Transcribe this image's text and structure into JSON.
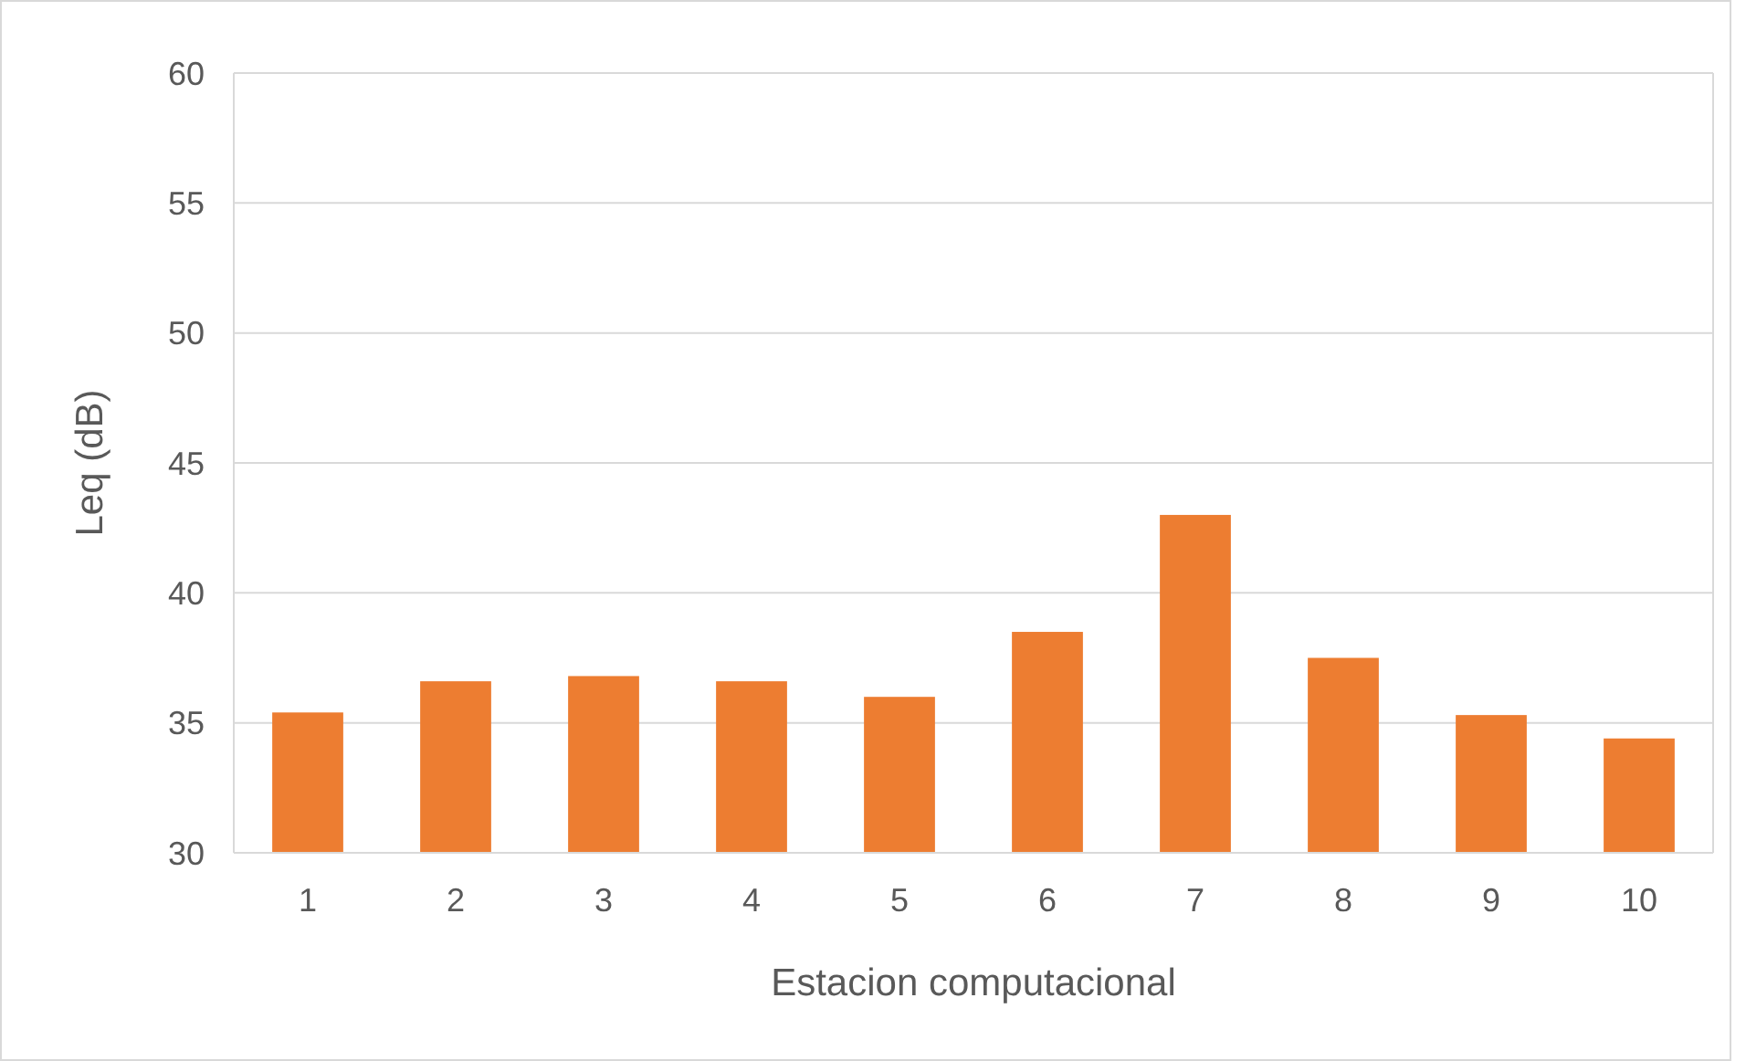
{
  "chart_data": {
    "type": "bar",
    "xlabel": "Estacion computacional",
    "ylabel": "Leq (dB)",
    "categories": [
      "1",
      "2",
      "3",
      "4",
      "5",
      "6",
      "7",
      "8",
      "9",
      "10"
    ],
    "values": [
      35.4,
      36.6,
      36.8,
      36.6,
      36.0,
      38.5,
      43.0,
      37.5,
      35.3,
      34.4
    ],
    "color": "#ed7d31",
    "ylim": [
      30,
      60
    ],
    "yticks": [
      30,
      35,
      40,
      45,
      50,
      55,
      60
    ],
    "grid": "y"
  }
}
